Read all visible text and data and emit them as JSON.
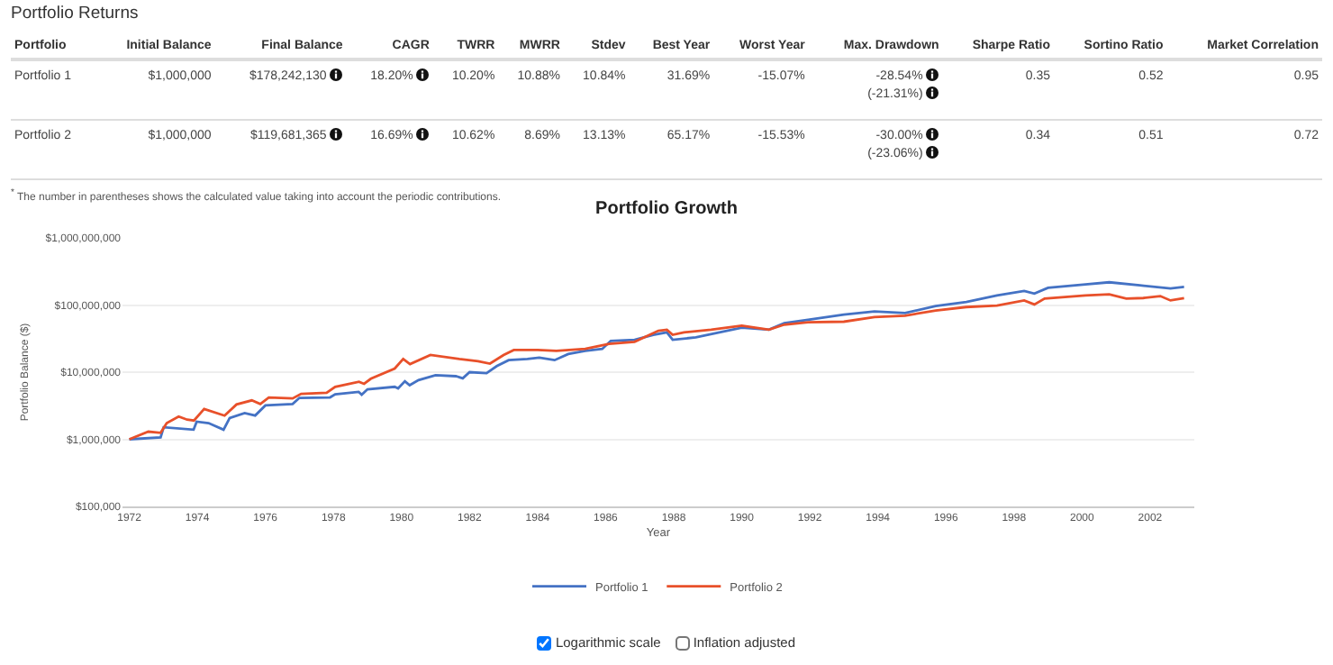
{
  "chart_data": [
    {
      "type": "other",
      "title": "Portfolio Returns",
      "categories": [
        "Portfolio",
        "Initial Balance",
        "Final Balance",
        "CAGR",
        "TWRR",
        "MWRR",
        "Stdev",
        "Best Year",
        "Worst Year",
        "Max. Drawdown",
        "Sharpe Ratio",
        "Sortino Ratio",
        "Market Correlation"
      ],
      "annotations": [
        "Portfolio 1",
        "$1,000,000",
        "$178,242,130",
        "18.20%",
        "10.20%",
        "10.88%",
        "10.84%",
        "31.69%",
        "-15.07%",
        "-28.54%\n(-21.31%)",
        "0.35",
        "0.52",
        "0.95",
        "Portfolio 2",
        "$1,000,000",
        "$119,681,365",
        "16.69%",
        "10.62%",
        "8.69%",
        "13.13%",
        "65.17%",
        "-15.53%",
        "-30.00%\n(-23.06%)",
        "0.34",
        "0.51",
        "0.72",
        "$^{*}$ The number in parentheses shows the calculated value taking into account the periodic contributions."
      ]
    },
    {
      "type": "line",
      "title": "Portfolio Growth",
      "xlabel": "Year",
      "ylabel": "Portfolio Balance ($)",
      "log": true,
      "grid": "y",
      "legend": "bottom",
      "line_style": "solid",
      "marker": "none",
      "xlim": [
        1971.8,
        2003.3
      ],
      "xticks": [
        1972,
        1974,
        1976,
        1978,
        1980,
        1982,
        1984,
        1986,
        1988,
        1990,
        1992,
        1994,
        1996,
        1998,
        2000,
        2002
      ],
      "ylim": [
        100000,
        1000000000
      ],
      "yticks": [
        {
          "value": 100000,
          "label": "$100,000"
        },
        {
          "value": 1000000,
          "label": "$1,000,000"
        },
        {
          "value": 10000000,
          "label": "$10,000,000"
        },
        {
          "value": 100000000,
          "label": "$100,000,000"
        },
        {
          "value": 1000000000,
          "label": "$1,000,000,000"
        }
      ],
      "series": [
        {
          "name": "Portfolio 1",
          "color": "#4472c4",
          "x": [
            1972.0,
            1972.92,
            1973.01,
            1973.89,
            1973.98,
            1974.33,
            1974.77,
            1974.95,
            1975.39,
            1975.7,
            1976.0,
            1976.8,
            1977.0,
            1977.9,
            1978.05,
            1978.74,
            1978.83,
            1979.0,
            1979.8,
            1979.9,
            1980.1,
            1980.24,
            1980.5,
            1981.0,
            1981.6,
            1981.8,
            1982.0,
            1982.5,
            1982.8,
            1983.15,
            1983.7,
            1984.05,
            1984.5,
            1984.9,
            1985.4,
            1985.9,
            1986.15,
            1986.85,
            1987.4,
            1987.8,
            1987.97,
            1988.65,
            1990.0,
            1990.8,
            1991.25,
            1991.95,
            1993.0,
            1993.9,
            1994.8,
            1995.7,
            1996.6,
            1997.5,
            1998.3,
            1998.6,
            1999.0,
            2000.1,
            2000.8,
            2001.7,
            2002.6,
            2003.0
          ],
          "values": [
            1000000,
            1070000,
            1510000,
            1390000,
            1830000,
            1740000,
            1390000,
            2070000,
            2460000,
            2260000,
            3190000,
            3360000,
            4140000,
            4200000,
            4670000,
            5090000,
            4600000,
            5550000,
            6050000,
            5740000,
            7320000,
            6380000,
            7600000,
            9000000,
            8700000,
            8100000,
            10000000,
            9660000,
            12300000,
            15100000,
            15700000,
            16500000,
            15100000,
            18600000,
            20700000,
            22200000,
            29200000,
            30300000,
            36000000,
            39200000,
            30300000,
            33000000,
            45900000,
            42900000,
            53600000,
            60500000,
            72000000,
            80000000,
            76000000,
            96600000,
            111000000,
            139000000,
            162000000,
            148000000,
            180000000,
            203000000,
            218000000,
            196000000,
            177000000,
            186000000
          ]
        },
        {
          "name": "Portfolio 2",
          "color": "#e8502a",
          "x": [
            1972.0,
            1972.56,
            1972.92,
            1973.1,
            1973.45,
            1973.7,
            1973.9,
            1974.2,
            1974.8,
            1975.15,
            1975.6,
            1975.85,
            1976.1,
            1976.8,
            1977.05,
            1977.8,
            1978.05,
            1978.75,
            1978.9,
            1979.1,
            1979.8,
            1980.05,
            1980.25,
            1980.85,
            1981.7,
            1982.25,
            1982.6,
            1983.0,
            1983.3,
            1984.0,
            1984.55,
            1985.4,
            1986.1,
            1986.85,
            1987.55,
            1987.8,
            1987.97,
            1988.3,
            1989.1,
            1990.0,
            1990.8,
            1991.25,
            1991.95,
            1993.0,
            1993.9,
            1994.8,
            1995.7,
            1996.6,
            1997.5,
            1998.3,
            1998.6,
            1998.9,
            2000.1,
            2000.8,
            2001.3,
            2001.8,
            2002.3,
            2002.6,
            2003.0
          ],
          "values": [
            1000000,
            1300000,
            1250000,
            1740000,
            2180000,
            1960000,
            1900000,
            2830000,
            2250000,
            3300000,
            3800000,
            3360000,
            4200000,
            4060000,
            4750000,
            4920000,
            6050000,
            7200000,
            6700000,
            7980000,
            11300000,
            15700000,
            13200000,
            18000000,
            15700000,
            14600000,
            13400000,
            18000000,
            21400000,
            21400000,
            20700000,
            22200000,
            26400000,
            28300000,
            41400000,
            42900000,
            36000000,
            39200000,
            42900000,
            49200000,
            42900000,
            51000000,
            55500000,
            56500000,
            66000000,
            69500000,
            82600000,
            93300000,
            98000000,
            117000000,
            102000000,
            125000000,
            139000000,
            144000000,
            125000000,
            127000000,
            136000000,
            117000000,
            127000000
          ]
        }
      ],
      "annotations": [
        "Logarithmic scale",
        "Inflation adjusted"
      ]
    }
  ]
}
